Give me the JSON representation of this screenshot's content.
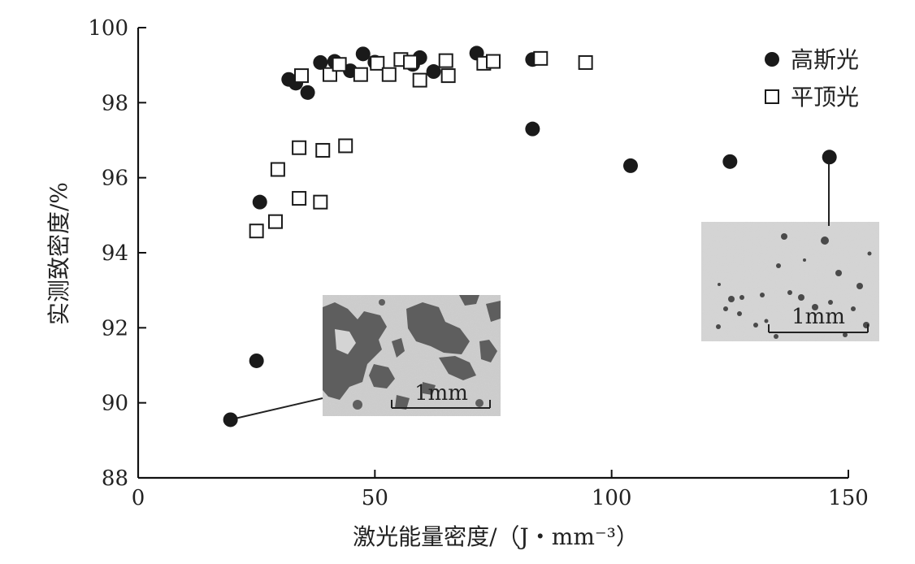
{
  "chart_data": {
    "type": "scatter",
    "title": "",
    "xlabel": "激光能量密度/（J・mm⁻³）",
    "ylabel": "实测致密度/%",
    "xlim": [
      0,
      150
    ],
    "ylim": [
      88,
      100
    ],
    "xticks": [
      0,
      50,
      100,
      150
    ],
    "yticks": [
      88,
      90,
      92,
      94,
      96,
      98,
      100
    ],
    "grid": false,
    "legend_position": "top-right",
    "series": [
      {
        "name": "高斯光",
        "marker": "filled-circle",
        "color": "#1a1a1a",
        "x": [
          19.5,
          25.0,
          25.7,
          31.8,
          33.3,
          35.8,
          38.5,
          41.5,
          44.8,
          47.5,
          50.0,
          58.0,
          59.5,
          62.4,
          71.5,
          83.3,
          83.3,
          104.0,
          125.0,
          146.0
        ],
        "y": [
          89.55,
          91.12,
          95.35,
          98.62,
          98.52,
          98.27,
          99.07,
          99.1,
          98.85,
          99.3,
          99.08,
          99.02,
          99.2,
          98.83,
          99.32,
          99.15,
          97.3,
          96.32,
          96.43,
          96.55
        ]
      },
      {
        "name": "平顶光",
        "marker": "open-square",
        "color": "#1a1a1a",
        "x": [
          25.0,
          29.0,
          29.5,
          34.0,
          34.0,
          34.5,
          38.5,
          39.0,
          40.5,
          42.5,
          43.8,
          47.0,
          50.5,
          53.0,
          55.5,
          57.5,
          59.5,
          65.0,
          65.5,
          73.0,
          75.0,
          85.0,
          94.5
        ],
        "y": [
          94.58,
          94.83,
          96.22,
          95.45,
          96.8,
          98.72,
          95.35,
          96.73,
          98.75,
          99.02,
          96.85,
          98.75,
          99.05,
          98.75,
          99.15,
          99.08,
          98.6,
          99.12,
          98.72,
          99.05,
          99.1,
          99.18,
          99.07
        ]
      }
    ],
    "insets": [
      {
        "name": "low-energy-micrograph",
        "scale_label": "1mm",
        "linked_point": [
          19.5,
          89.55
        ]
      },
      {
        "name": "high-energy-micrograph",
        "scale_label": "1mm",
        "linked_point": [
          146.0,
          96.55
        ]
      }
    ]
  }
}
